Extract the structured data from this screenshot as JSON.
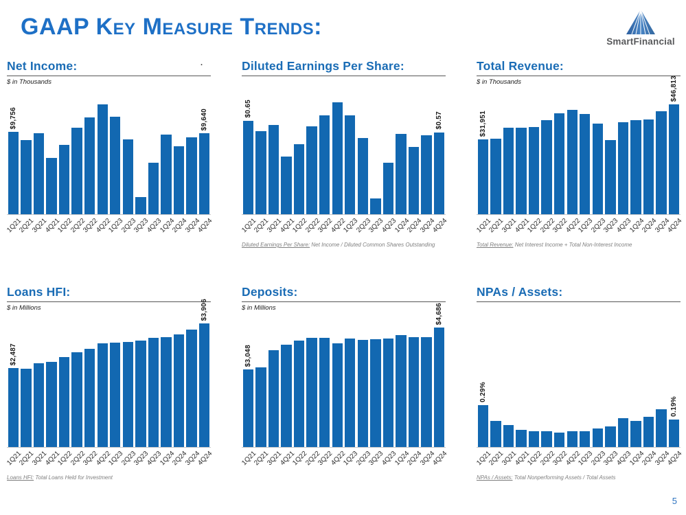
{
  "slide": {
    "title": "GAAP Key Measure Trends:",
    "page_number": "5",
    "stray_mark": ".",
    "logo": {
      "brand": "SmartFinancial",
      "icon": "mountain-triangle-icon"
    }
  },
  "colors": {
    "bar_blue": "#1268B1",
    "title_blue": "#1A6CB5",
    "header_blue": "#1E70C6",
    "footnote_gray": "#7F7F7F",
    "page_number_blue": "#2E74C0",
    "rule_gray": "#555555",
    "logo_text_gray": "#58595B",
    "logo_triangle_blue": "#3A6FA8"
  },
  "chart_data": [
    {
      "type": "bar",
      "title": "Net Income:",
      "units": "$ in Thousands",
      "categories": [
        "1Q21",
        "2Q21",
        "3Q21",
        "4Q21",
        "1Q22",
        "2Q22",
        "3Q22",
        "4Q22",
        "1Q23",
        "2Q23",
        "3Q23",
        "4Q23",
        "1Q24",
        "2Q24",
        "3Q24",
        "4Q24"
      ],
      "values": [
        9756,
        8800,
        9610,
        6650,
        8250,
        10250,
        11520,
        13050,
        11540,
        8890,
        2010,
        6150,
        9420,
        8050,
        9170,
        9640
      ],
      "first_label": "$9,756",
      "last_label": "$9,640",
      "ylim": [
        0,
        15000
      ],
      "grid": false,
      "footnote_label": "",
      "footnote_rest": ""
    },
    {
      "type": "bar",
      "title": "Diluted Earnings Per Share:",
      "units": "",
      "categories": [
        "1Q21",
        "2Q21",
        "3Q21",
        "4Q21",
        "1Q22",
        "2Q22",
        "3Q22",
        "4Q22",
        "1Q23",
        "2Q23",
        "3Q23",
        "4Q23",
        "1Q24",
        "2Q24",
        "3Q24",
        "4Q24"
      ],
      "values": [
        0.65,
        0.58,
        0.62,
        0.4,
        0.49,
        0.61,
        0.69,
        0.78,
        0.69,
        0.53,
        0.11,
        0.36,
        0.56,
        0.47,
        0.55,
        0.57
      ],
      "first_label": "$0.65",
      "last_label": "$0.57",
      "ylim": [
        0,
        0.88
      ],
      "grid": false,
      "footnote_label": "Diluted Earnings Per Share:",
      "footnote_rest": " Net Income / Diluted Common Shares Outstanding"
    },
    {
      "type": "bar",
      "title": "Total Revenue:",
      "units": "$ in Thousands",
      "categories": [
        "1Q21",
        "2Q21",
        "3Q21",
        "4Q21",
        "1Q22",
        "2Q22",
        "3Q22",
        "4Q22",
        "1Q23",
        "2Q23",
        "3Q23",
        "4Q23",
        "1Q24",
        "2Q24",
        "3Q24",
        "4Q24"
      ],
      "values": [
        31951,
        32400,
        36900,
        36900,
        37400,
        40300,
        43100,
        44700,
        42900,
        38600,
        31800,
        39300,
        40200,
        40400,
        44000,
        46813
      ],
      "first_label": "$31,951",
      "last_label": "$46,813",
      "ylim": [
        0,
        54000
      ],
      "grid": false,
      "footnote_label": "Total Revenue:",
      "footnote_rest": " Net Interest Income + Total Non-Interest Income"
    },
    {
      "type": "bar",
      "title": "Loans HFI:",
      "units": "$ in Millions",
      "categories": [
        "1Q21",
        "2Q21",
        "3Q21",
        "4Q21",
        "1Q22",
        "2Q22",
        "3Q22",
        "4Q22",
        "1Q23",
        "2Q23",
        "3Q23",
        "4Q23",
        "1Q24",
        "2Q24",
        "3Q24",
        "4Q24"
      ],
      "values": [
        2487,
        2465,
        2650,
        2690,
        2830,
        2990,
        3100,
        3260,
        3285,
        3320,
        3365,
        3445,
        3465,
        3555,
        3705,
        3906
      ],
      "first_label": "$2,487",
      "last_label": "$3,906",
      "ylim": [
        0,
        4200
      ],
      "grid": false,
      "footnote_label": "Loans HFI:",
      "footnote_rest": " Total Loans Held for Investment"
    },
    {
      "type": "bar",
      "title": "Deposits:",
      "units": "$ in Millions",
      "categories": [
        "1Q21",
        "2Q21",
        "3Q21",
        "4Q21",
        "1Q22",
        "2Q22",
        "3Q22",
        "4Q22",
        "1Q23",
        "2Q23",
        "3Q23",
        "4Q23",
        "1Q24",
        "2Q24",
        "3Q24",
        "4Q24"
      ],
      "values": [
        3048,
        3140,
        3790,
        4010,
        4175,
        4290,
        4290,
        4075,
        4250,
        4210,
        4240,
        4265,
        4390,
        4310,
        4320,
        4686
      ],
      "first_label": "$3,048",
      "last_label": "$4,686",
      "ylim": [
        0,
        5230
      ],
      "grid": false,
      "footnote_label": "",
      "footnote_rest": ""
    },
    {
      "type": "bar",
      "title": "NPAs / Assets:",
      "units": "",
      "categories": [
        "1Q21",
        "2Q21",
        "3Q21",
        "4Q21",
        "1Q22",
        "2Q22",
        "3Q22",
        "4Q22",
        "1Q23",
        "2Q23",
        "3Q23",
        "4Q23",
        "1Q24",
        "2Q24",
        "3Q24",
        "4Q24"
      ],
      "values": [
        0.29,
        0.18,
        0.15,
        0.12,
        0.11,
        0.11,
        0.1,
        0.11,
        0.11,
        0.13,
        0.14,
        0.2,
        0.18,
        0.21,
        0.26,
        0.19
      ],
      "first_label": "0.29%",
      "last_label": "0.19%",
      "ylim": [
        0,
        0.92
      ],
      "grid": false,
      "footnote_label": "NPAs / Assets:",
      "footnote_rest": " Total Nonperforming Assets / Total Assets"
    }
  ]
}
